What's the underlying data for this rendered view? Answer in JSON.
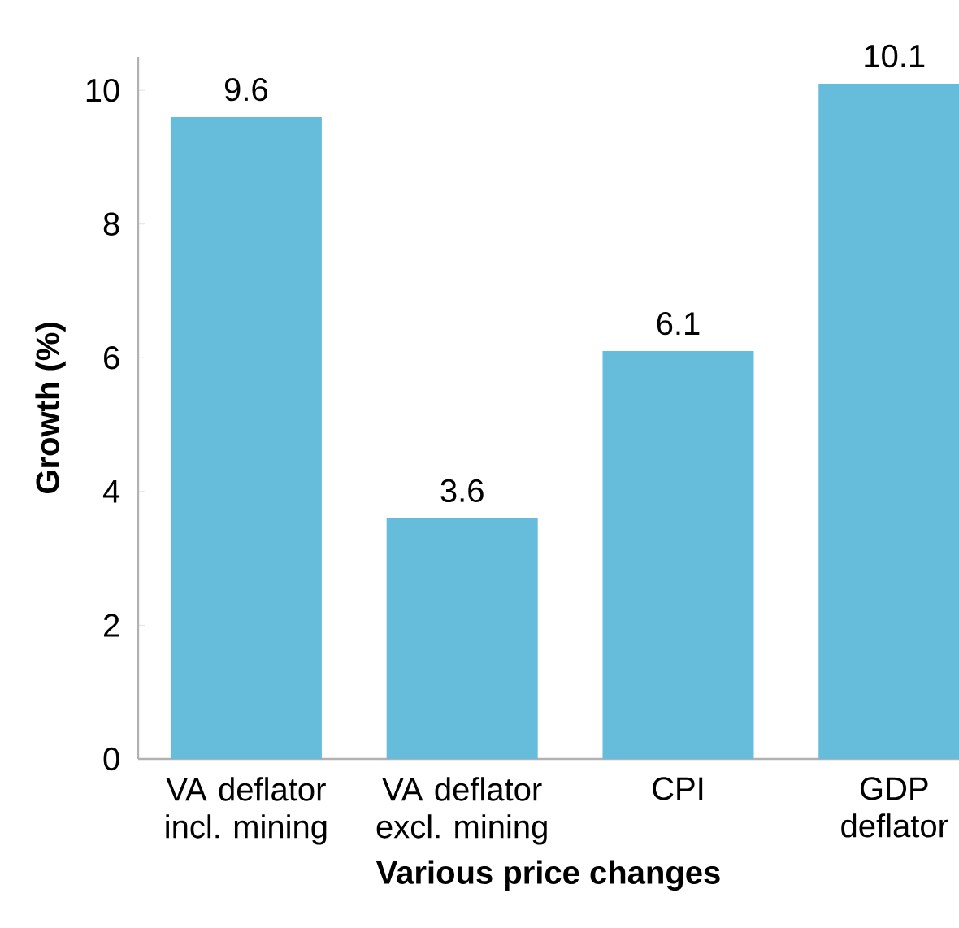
{
  "chart_data": {
    "type": "bar",
    "xlabel": "Various price changes",
    "ylabel": "Growth (%)",
    "categories": [
      "VA deflator incl. mining",
      "VA deflator excl. mining",
      "CPI",
      "GDP deflator"
    ],
    "values": [
      9.6,
      3.6,
      6.1,
      10.1
    ],
    "color": "#65bcdb",
    "data_labels": true,
    "ylim": [
      0,
      10.5
    ],
    "yticks": [
      0,
      2,
      4,
      6,
      8,
      10
    ],
    "grid": false
  }
}
